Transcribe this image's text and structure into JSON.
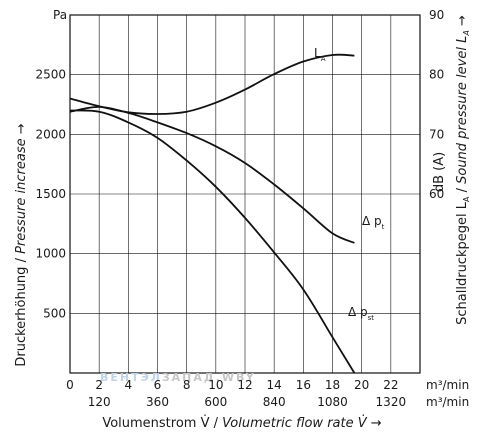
{
  "chart_data": {
    "type": "line",
    "left_axis": {
      "unit": "Pa",
      "ticks": [
        500,
        1000,
        1500,
        2000,
        2500
      ],
      "range": [
        0,
        3000
      ],
      "label_de": "Druckerhöhung",
      "label_en": "Pressure increase",
      "arrow": "→"
    },
    "right_axis": {
      "ticks": [
        60,
        70,
        80,
        90
      ],
      "range": [
        30,
        90
      ],
      "unit": "dB (A)",
      "label_de": "Schalldruckpegel L",
      "label_sub": "A",
      "label_en": "Sound pressure level L",
      "label_en_sub": "A",
      "arrow": "→"
    },
    "x_axis_top": {
      "ticks": [
        0,
        2,
        4,
        6,
        8,
        10,
        12,
        14,
        16,
        18,
        20,
        22
      ],
      "unit": "m³/min",
      "range": [
        0,
        24
      ]
    },
    "x_axis_bottom": {
      "ticks": [
        120,
        360,
        600,
        840,
        1080,
        1320
      ],
      "unit": "m³/min"
    },
    "x_label_de": "Volumenstrom V̇",
    "x_label_en": "Volumetric flow rate V̇",
    "x_arrow": "→",
    "series": [
      {
        "name": "Δ p",
        "sub": "t",
        "axis": "left",
        "x": [
          0,
          2,
          4,
          6,
          8,
          10,
          12,
          14,
          16,
          18,
          19.5
        ],
        "y": [
          2190,
          2230,
          2180,
          2100,
          2010,
          1900,
          1760,
          1580,
          1380,
          1170,
          1090
        ]
      },
      {
        "name": "Δ p",
        "sub": "st",
        "axis": "left",
        "x": [
          0,
          2,
          4,
          6,
          8,
          10,
          12,
          14,
          16,
          18,
          19.5
        ],
        "y": [
          2200,
          2190,
          2100,
          1970,
          1780,
          1560,
          1300,
          1010,
          700,
          300,
          0
        ]
      },
      {
        "name": "L",
        "sub": "A",
        "axis": "right",
        "x": [
          0,
          2,
          4,
          6,
          8,
          10,
          12,
          14,
          16,
          18,
          19.5
        ],
        "y": [
          76,
          74.7,
          73.7,
          73.4,
          73.8,
          75.3,
          77.5,
          80.1,
          82.2,
          83.3,
          83.2
        ]
      }
    ],
    "grid": true,
    "watermark": {
      "part1": "ВЕНТЭЛ",
      "part2": "ЗАПАД",
      "part3": ".WBY",
      "color1": "#bfd3e8",
      "color2": "#c6c6c6"
    }
  }
}
